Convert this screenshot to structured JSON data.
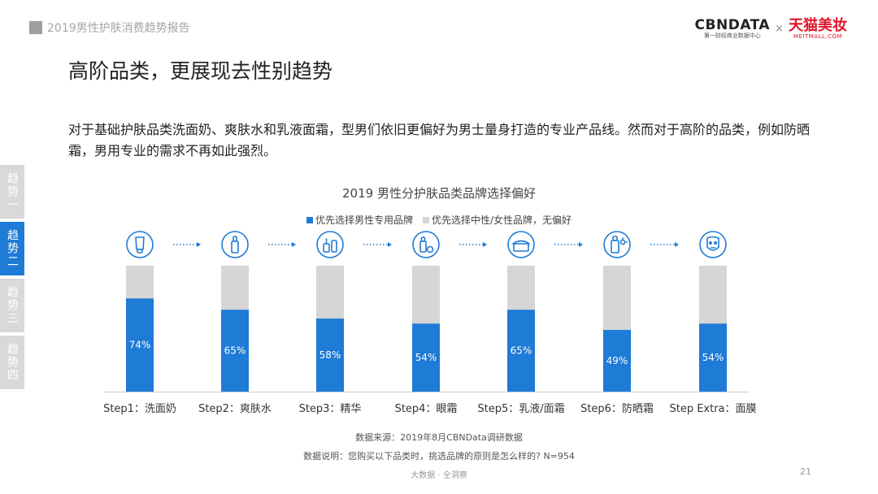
{
  "header": {
    "report_title": "2019男性护肤消费趋势报告"
  },
  "logos": {
    "cbn_main": "CBNDATA",
    "cbn_sub": "第一财经商业数据中心",
    "times": "×",
    "tmall_main": "天猫美妆",
    "tmall_sub": "MEITMALL.COM"
  },
  "page_title": "高阶品类，更展现去性别趋势",
  "intro": "对于基础护肤品类洗面奶、爽肤水和乳液面霜，型男们依旧更偏好为男士量身打造的专业产品线。然而对于高阶的品类，例如防晒霜，男用专业的需求不再如此强烈。",
  "side_tabs": [
    {
      "label": "趋势一",
      "active": false
    },
    {
      "label": "趋势二",
      "active": true
    },
    {
      "label": "趋势三",
      "active": false
    },
    {
      "label": "趋势四",
      "active": false
    }
  ],
  "chart_data": {
    "type": "bar",
    "stacked": true,
    "normalized_to": 100,
    "title": "2019 男性分护肤品类品牌选择偏好",
    "categories": [
      "Step1：洗面奶",
      "Step2：爽肤水",
      "Step3：精华",
      "Step4：眼霜",
      "Step5：乳液/面霜",
      "Step6：防晒霜",
      "Step Extra：面膜"
    ],
    "icons": [
      "cleanser-tube-icon",
      "toner-bottle-icon",
      "serum-dropper-icon",
      "eye-cream-icon",
      "cream-jar-icon",
      "sunscreen-icon",
      "face-mask-icon"
    ],
    "series": [
      {
        "name": "优先选择男性专用品牌",
        "values": [
          74,
          65,
          58,
          54,
          65,
          49,
          54
        ],
        "color": "#1e7bd6"
      },
      {
        "name": "优先选择中性/女性品牌，无偏好",
        "values": [
          26,
          35,
          42,
          46,
          35,
          51,
          46
        ],
        "color": "#d6d6d6"
      }
    ],
    "data_labels": [
      "74%",
      "65%",
      "58%",
      "54%",
      "65%",
      "49%",
      "54%"
    ],
    "legend_position": "top-center",
    "grid": false
  },
  "footer": {
    "source": "数据来源：2019年8月CBNData调研数据",
    "note": "数据说明：您购买以下品类时，挑选品牌的原则是怎么样的? N=954",
    "tag": "大数据 · 全洞察",
    "page_number": "21"
  }
}
